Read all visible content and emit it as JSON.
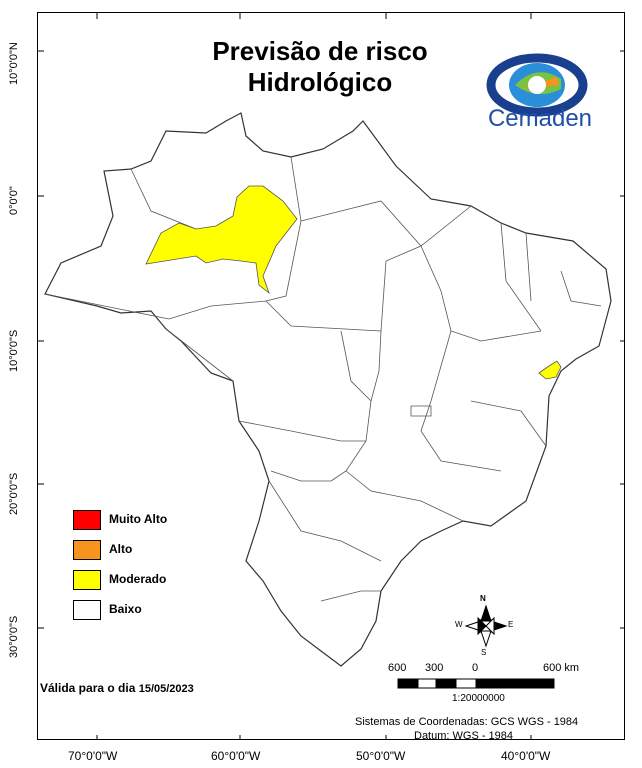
{
  "title": {
    "line1": "Previsão de risco",
    "line2": "Hidrológico"
  },
  "logo": {
    "text": "Cemaden"
  },
  "legend": [
    {
      "label": "Muito Alto",
      "color": "#FF0000"
    },
    {
      "label": "Alto",
      "color": "#F7931E"
    },
    {
      "label": "Moderado",
      "color": "#FFFF00"
    },
    {
      "label": "Baixo",
      "color": "#FFFFFF"
    }
  ],
  "valid": {
    "prefix": "Válida para o dia",
    "date": "15/05/2023"
  },
  "scale": {
    "labels": [
      "600",
      "300",
      "0",
      "600 km"
    ],
    "ratio": "1:20000000"
  },
  "north_arrow": {
    "n": "N",
    "s": "S",
    "e": "E",
    "w": "W"
  },
  "coords": {
    "line1": "Sistemas de Coordenadas: GCS WGS - 1984",
    "line2": "Datum: WGS - 1984"
  },
  "lat_labels": [
    "10°0'0\"N",
    "0°0'0\"",
    "10°0'0\"S",
    "20°0'0\"S",
    "30°0'0\"S"
  ],
  "lon_labels": [
    "70°0'0\"W",
    "60°0'0\"W",
    "50°0'0\"W",
    "40°0'0\"W"
  ],
  "map": {
    "base_fill": "#FFFFFF",
    "border_color": "#333333",
    "highlight_color": "#FFFF00"
  }
}
